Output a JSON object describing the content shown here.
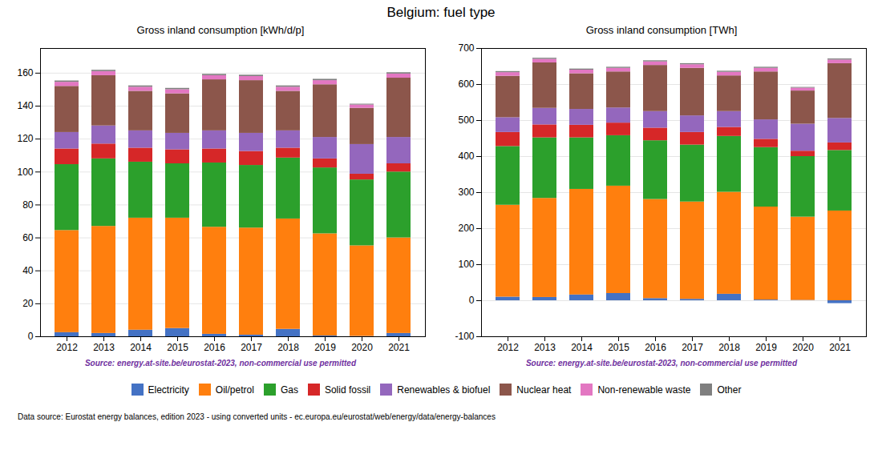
{
  "title": "Belgium: fuel type",
  "legend": "bottom",
  "annotations": [
    "Data source: Eurostat energy balances, edition 2023 - using converted units - ec.europa.eu/eurostat/web/energy/data/energy-balances"
  ],
  "chart_data": [
    {
      "type": "bar",
      "stacked": true,
      "grid": true,
      "title": "Gross inland consumption [kWh/d/p]",
      "annotations": [
        "Source: energy.at-site.be/eurostat-2023, non-commercial use permitted"
      ],
      "categories": [
        "2012",
        "2013",
        "2014",
        "2015",
        "2016",
        "2017",
        "2018",
        "2019",
        "2020",
        "2021"
      ],
      "series": [
        {
          "name": "Electricity",
          "color": "#4472c4",
          "values": [
            2.5,
            2.0,
            4.0,
            5.0,
            1.5,
            1.0,
            4.5,
            0.5,
            0.2,
            2.0
          ]
        },
        {
          "name": "Oil/petrol",
          "color": "#ff7f0e",
          "values": [
            62.0,
            65.0,
            68.0,
            67.0,
            65.0,
            65.0,
            67.0,
            62.0,
            55.0,
            58.0
          ]
        },
        {
          "name": "Gas",
          "color": "#2ca02c",
          "values": [
            40.0,
            41.0,
            34.0,
            33.0,
            39.0,
            38.0,
            37.0,
            40.0,
            40.0,
            40.0
          ]
        },
        {
          "name": "Solid fossil",
          "color": "#d62728",
          "values": [
            9.5,
            9.0,
            8.5,
            8.5,
            8.5,
            8.5,
            6.0,
            5.5,
            3.5,
            5.0
          ]
        },
        {
          "name": "Renewables & biofuel",
          "color": "#9467bd",
          "values": [
            10.0,
            11.0,
            10.5,
            10.0,
            11.0,
            11.0,
            10.5,
            13.0,
            18.0,
            16.0
          ]
        },
        {
          "name": "Nuclear heat",
          "color": "#8c564b",
          "values": [
            28.0,
            30.5,
            24.0,
            24.0,
            31.0,
            32.0,
            24.0,
            32.0,
            22.0,
            36.0
          ]
        },
        {
          "name": "Non-renewable waste",
          "color": "#e377c2",
          "values": [
            2.5,
            2.5,
            2.5,
            2.5,
            2.5,
            2.5,
            2.5,
            2.5,
            2.0,
            2.5
          ]
        },
        {
          "name": "Other",
          "color": "#7f7f7f",
          "values": [
            0.8,
            0.8,
            0.8,
            0.8,
            0.8,
            0.8,
            0.8,
            0.8,
            0.5,
            0.8
          ]
        }
      ],
      "ylim": [
        0,
        175
      ],
      "yticks": [
        0,
        20,
        40,
        60,
        80,
        100,
        120,
        140,
        160
      ]
    },
    {
      "type": "bar",
      "stacked": true,
      "grid": true,
      "title": "Gross inland consumption [TWh]",
      "annotations": [
        "Source: energy.at-site.be/eurostat-2023, non-commercial use permitted"
      ],
      "categories": [
        "2012",
        "2013",
        "2014",
        "2015",
        "2016",
        "2017",
        "2018",
        "2019",
        "2020",
        "2021"
      ],
      "series": [
        {
          "name": "Electricity",
          "color": "#4472c4",
          "values": [
            10,
            9,
            16,
            20,
            6,
            4,
            18,
            2,
            1,
            -8
          ]
        },
        {
          "name": "Oil/petrol",
          "color": "#ff7f0e",
          "values": [
            255,
            275,
            293,
            298,
            275,
            270,
            283,
            258,
            231,
            249
          ]
        },
        {
          "name": "Gas",
          "color": "#2ca02c",
          "values": [
            163,
            168,
            143,
            140,
            163,
            158,
            155,
            165,
            168,
            168
          ]
        },
        {
          "name": "Solid fossil",
          "color": "#d62728",
          "values": [
            39,
            36,
            35,
            35,
            35,
            35,
            25,
            23,
            15,
            21
          ]
        },
        {
          "name": "Renewables & biofuel",
          "color": "#9467bd",
          "values": [
            41,
            46,
            44,
            42,
            46,
            46,
            44,
            54,
            75,
            68
          ]
        },
        {
          "name": "Nuclear heat",
          "color": "#8c564b",
          "values": [
            115,
            126,
            99,
            100,
            128,
            132,
            99,
            133,
            92,
            152
          ]
        },
        {
          "name": "Non-renewable waste",
          "color": "#e377c2",
          "values": [
            10,
            10,
            10,
            10,
            10,
            10,
            10,
            10,
            8,
            10
          ]
        },
        {
          "name": "Other",
          "color": "#7f7f7f",
          "values": [
            3,
            3,
            3,
            3,
            3,
            3,
            3,
            3,
            2,
            3
          ]
        }
      ],
      "ylim": [
        -100,
        700
      ],
      "yticks": [
        -100,
        0,
        100,
        200,
        300,
        400,
        500,
        600,
        700
      ]
    }
  ]
}
